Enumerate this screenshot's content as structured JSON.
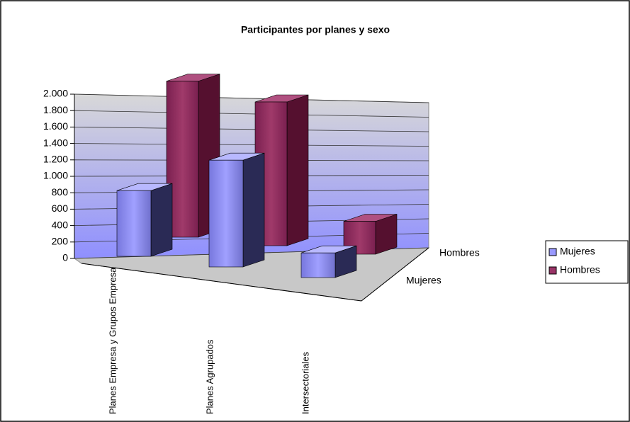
{
  "chart_data": {
    "type": "bar3d",
    "title": "Participantes por planes y sexo",
    "categories": [
      "Planes Empresa y Grupos Empresa",
      "Planes Agrupados",
      "Intersectoriales"
    ],
    "series": [
      {
        "name": "Mujeres",
        "color": "#9999ff",
        "values": [
          800,
          1300,
          300
        ]
      },
      {
        "name": "Hombres",
        "color": "#993366",
        "values": [
          1900,
          1750,
          400
        ]
      }
    ],
    "ylim": [
      0,
      2000
    ],
    "yticks": [
      0,
      200,
      400,
      600,
      800,
      {
        "value": 1000,
        "label": "1.000"
      },
      {
        "value": 1200,
        "label": "1.200"
      },
      {
        "value": 1400,
        "label": "1.400"
      },
      {
        "value": 1600,
        "label": "1.600"
      },
      {
        "value": 1800,
        "label": "1.800"
      },
      {
        "value": 2000,
        "label": "2.000"
      }
    ],
    "grid": true,
    "legend": "right"
  }
}
